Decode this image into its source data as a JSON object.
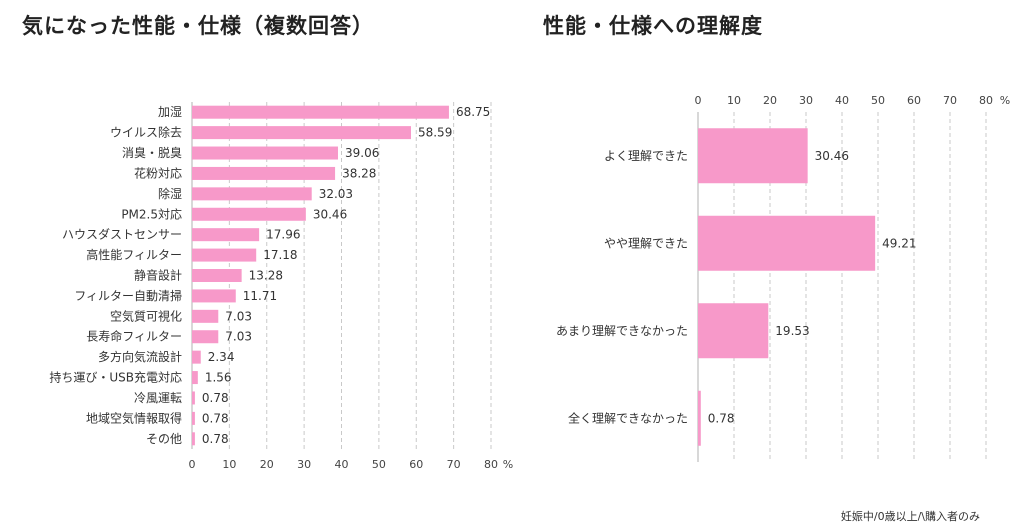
{
  "chart_data": [
    {
      "type": "bar",
      "orientation": "horizontal",
      "title": "気になった性能・仕様（複数回答）",
      "categories": [
        "加湿",
        "ウイルス除去",
        "消臭・脱臭",
        "花粉対応",
        "除湿",
        "PM2.5対応",
        "ハウスダストセンサー",
        "高性能フィルター",
        "静音設計",
        "フィルター自動清掃",
        "空気質可視化",
        "長寿命フィルター",
        "多方向気流設計",
        "持ち運び・USB充電対応",
        "冷風運転",
        "地域空気情報取得",
        "その他"
      ],
      "values": [
        68.75,
        58.59,
        39.06,
        38.28,
        32.03,
        30.46,
        17.96,
        17.18,
        13.28,
        11.71,
        7.03,
        7.03,
        2.34,
        1.56,
        0.78,
        0.78,
        0.78
      ],
      "value_labels": [
        "68.75",
        "58.59",
        "39.06",
        "38.28",
        "32.03",
        "30.46",
        "17.96",
        "17.18",
        "13.28",
        "11.71",
        "7.03",
        "7.03",
        "2.34",
        "1.56",
        "0.78",
        "0.78",
        "0.78"
      ],
      "xlim": [
        0,
        80
      ],
      "xticks": [
        "0",
        "10",
        "20",
        "30",
        "40",
        "50",
        "60",
        "70",
        "80"
      ],
      "unit": "%",
      "axis_position": "bottom",
      "grid": true,
      "bar_color": "#f799c9"
    },
    {
      "type": "bar",
      "orientation": "horizontal",
      "title": "性能・仕様への理解度",
      "categories": [
        "よく理解できた",
        "やや理解できた",
        "あまり理解できなかった",
        "全く理解できなかった"
      ],
      "values": [
        30.46,
        49.21,
        19.53,
        0.78
      ],
      "value_labels": [
        "30.46",
        "49.21",
        "19.53",
        "0.78"
      ],
      "xlim": [
        0,
        80
      ],
      "xticks": [
        "0",
        "10",
        "20",
        "30",
        "40",
        "50",
        "60",
        "70",
        "80"
      ],
      "unit": "%",
      "axis_position": "top",
      "grid": true,
      "bar_color": "#f799c9"
    }
  ],
  "footnote": "妊娠中/0歳以上/\\購入者のみ"
}
